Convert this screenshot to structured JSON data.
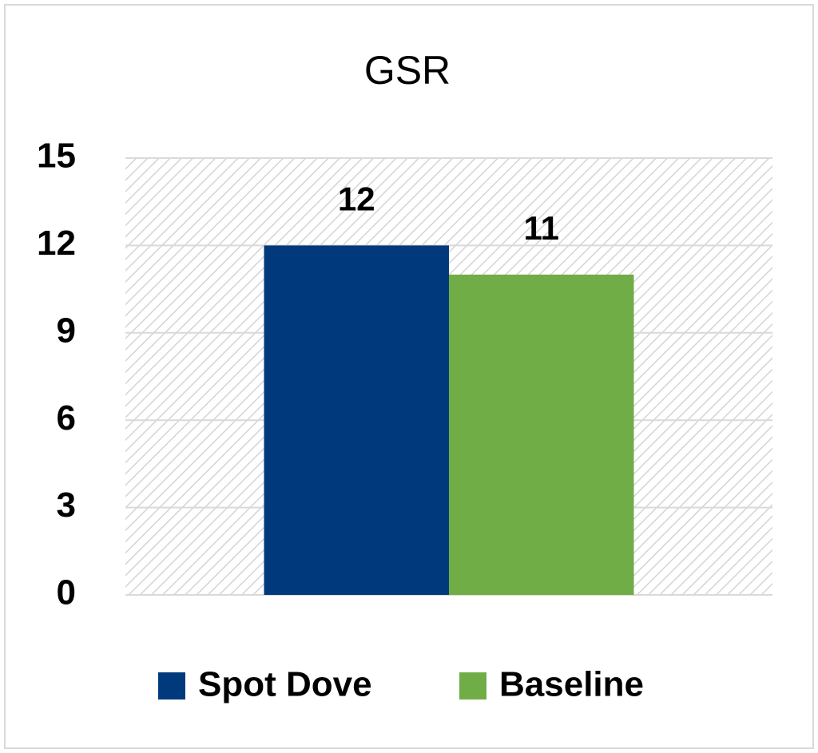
{
  "chart_data": {
    "type": "bar",
    "title": "GSR",
    "categories": [
      null
    ],
    "series": [
      {
        "name": "Spot Dove",
        "color": "#003a7d",
        "values": [
          12
        ]
      },
      {
        "name": "Baseline",
        "color": "#70ad47",
        "values": [
          11
        ]
      }
    ],
    "ylim": [
      0,
      15
    ],
    "yticks": [
      0,
      3,
      6,
      9,
      12,
      15
    ],
    "grid": true,
    "legend": "bottom"
  }
}
